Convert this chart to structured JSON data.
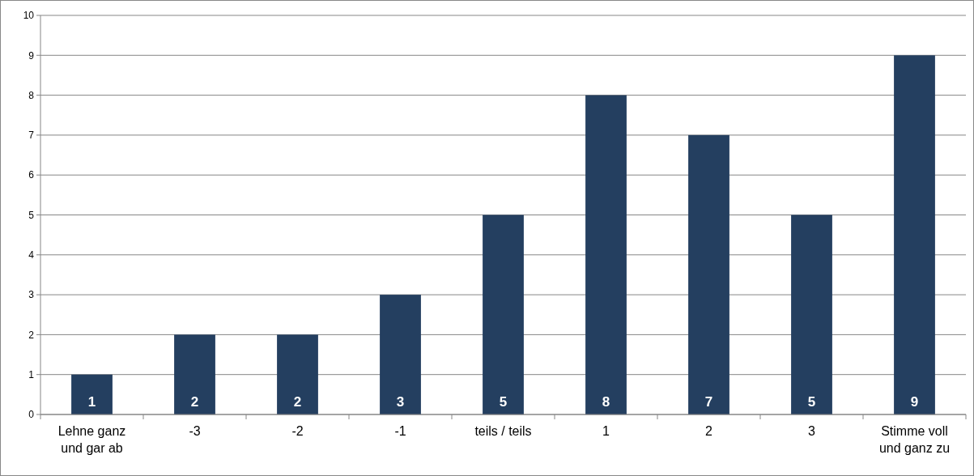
{
  "chart_data": {
    "type": "bar",
    "categories": [
      "Lehne ganz und gar ab",
      "-3",
      "-2",
      "-1",
      "teils / teils",
      "1",
      "2",
      "3",
      "Stimme voll und ganz zu"
    ],
    "values": [
      1,
      2,
      2,
      3,
      5,
      8,
      7,
      5,
      9
    ],
    "color": "#243f60",
    "ylim": [
      0,
      10
    ],
    "yticks": [
      0,
      1,
      2,
      3,
      4,
      5,
      6,
      7,
      8,
      9,
      10
    ],
    "grid": "y",
    "data_labels": true
  }
}
